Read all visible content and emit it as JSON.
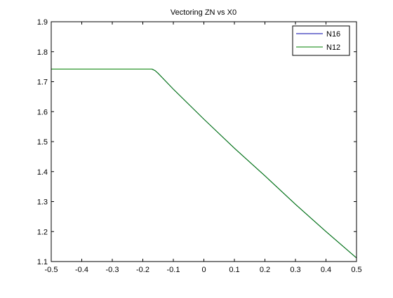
{
  "chart_data": {
    "type": "line",
    "title": "Vectoring ZN vs X0",
    "xlabel": "",
    "ylabel": "",
    "xlim": [
      -0.5,
      0.5
    ],
    "ylim": [
      1.1,
      1.9
    ],
    "xticks": [
      -0.5,
      -0.4,
      -0.3,
      -0.2,
      -0.1,
      0,
      0.1,
      0.2,
      0.3,
      0.4,
      0.5
    ],
    "xtick_labels": [
      "-0.5",
      "-0.4",
      "-0.3",
      "-0.2",
      "-0.1",
      "0",
      "0.1",
      "0.2",
      "0.3",
      "0.4",
      "0.5"
    ],
    "yticks": [
      1.1,
      1.2,
      1.3,
      1.4,
      1.5,
      1.6,
      1.7,
      1.8,
      1.9
    ],
    "ytick_labels": [
      "1.1",
      "1.2",
      "1.3",
      "1.4",
      "1.5",
      "1.6",
      "1.7",
      "1.8",
      "1.9"
    ],
    "grid": false,
    "legend_position": "top-right",
    "series": [
      {
        "name": "N16",
        "color": "#0000aa",
        "x": [
          -0.5,
          -0.4,
          -0.3,
          -0.2,
          -0.17,
          -0.16,
          -0.15,
          -0.1,
          0,
          0.1,
          0.2,
          0.3,
          0.4,
          0.5
        ],
        "y": [
          1.742,
          1.742,
          1.742,
          1.742,
          1.742,
          1.737,
          1.728,
          1.675,
          1.575,
          1.478,
          1.386,
          1.291,
          1.2,
          1.112
        ]
      },
      {
        "name": "N12",
        "color": "#008000",
        "x": [
          -0.5,
          -0.4,
          -0.3,
          -0.2,
          -0.17,
          -0.16,
          -0.15,
          -0.1,
          0,
          0.1,
          0.2,
          0.3,
          0.4,
          0.5
        ],
        "y": [
          1.742,
          1.742,
          1.742,
          1.742,
          1.742,
          1.737,
          1.728,
          1.675,
          1.575,
          1.478,
          1.386,
          1.291,
          1.2,
          1.112
        ]
      }
    ]
  }
}
